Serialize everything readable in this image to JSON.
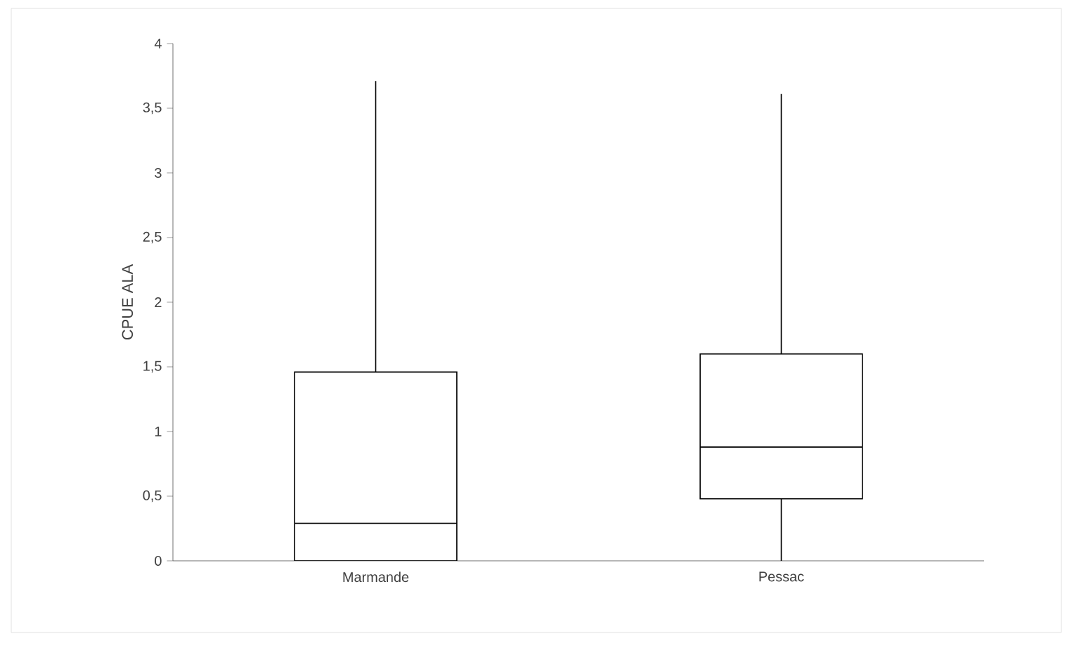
{
  "chart_data": {
    "type": "box",
    "ylabel": "CPUE  ALA",
    "categories": [
      "Marmande",
      "Pessac"
    ],
    "boxes": [
      {
        "low": 0,
        "q1": 0,
        "median": 0.29,
        "q3": 1.46,
        "high": 3.71
      },
      {
        "low": 0,
        "q1": 0.48,
        "median": 0.88,
        "q3": 1.6,
        "high": 3.61
      }
    ],
    "ylim": [
      0,
      4
    ],
    "yticks": [
      0,
      {
        "value": 0.5,
        "label": "0,5"
      },
      1,
      {
        "value": 1.5,
        "label": "1,5"
      },
      2,
      {
        "value": 2.5,
        "label": "2,5"
      },
      3,
      {
        "value": 3.5,
        "label": "3,5"
      },
      4
    ],
    "grid": false
  }
}
